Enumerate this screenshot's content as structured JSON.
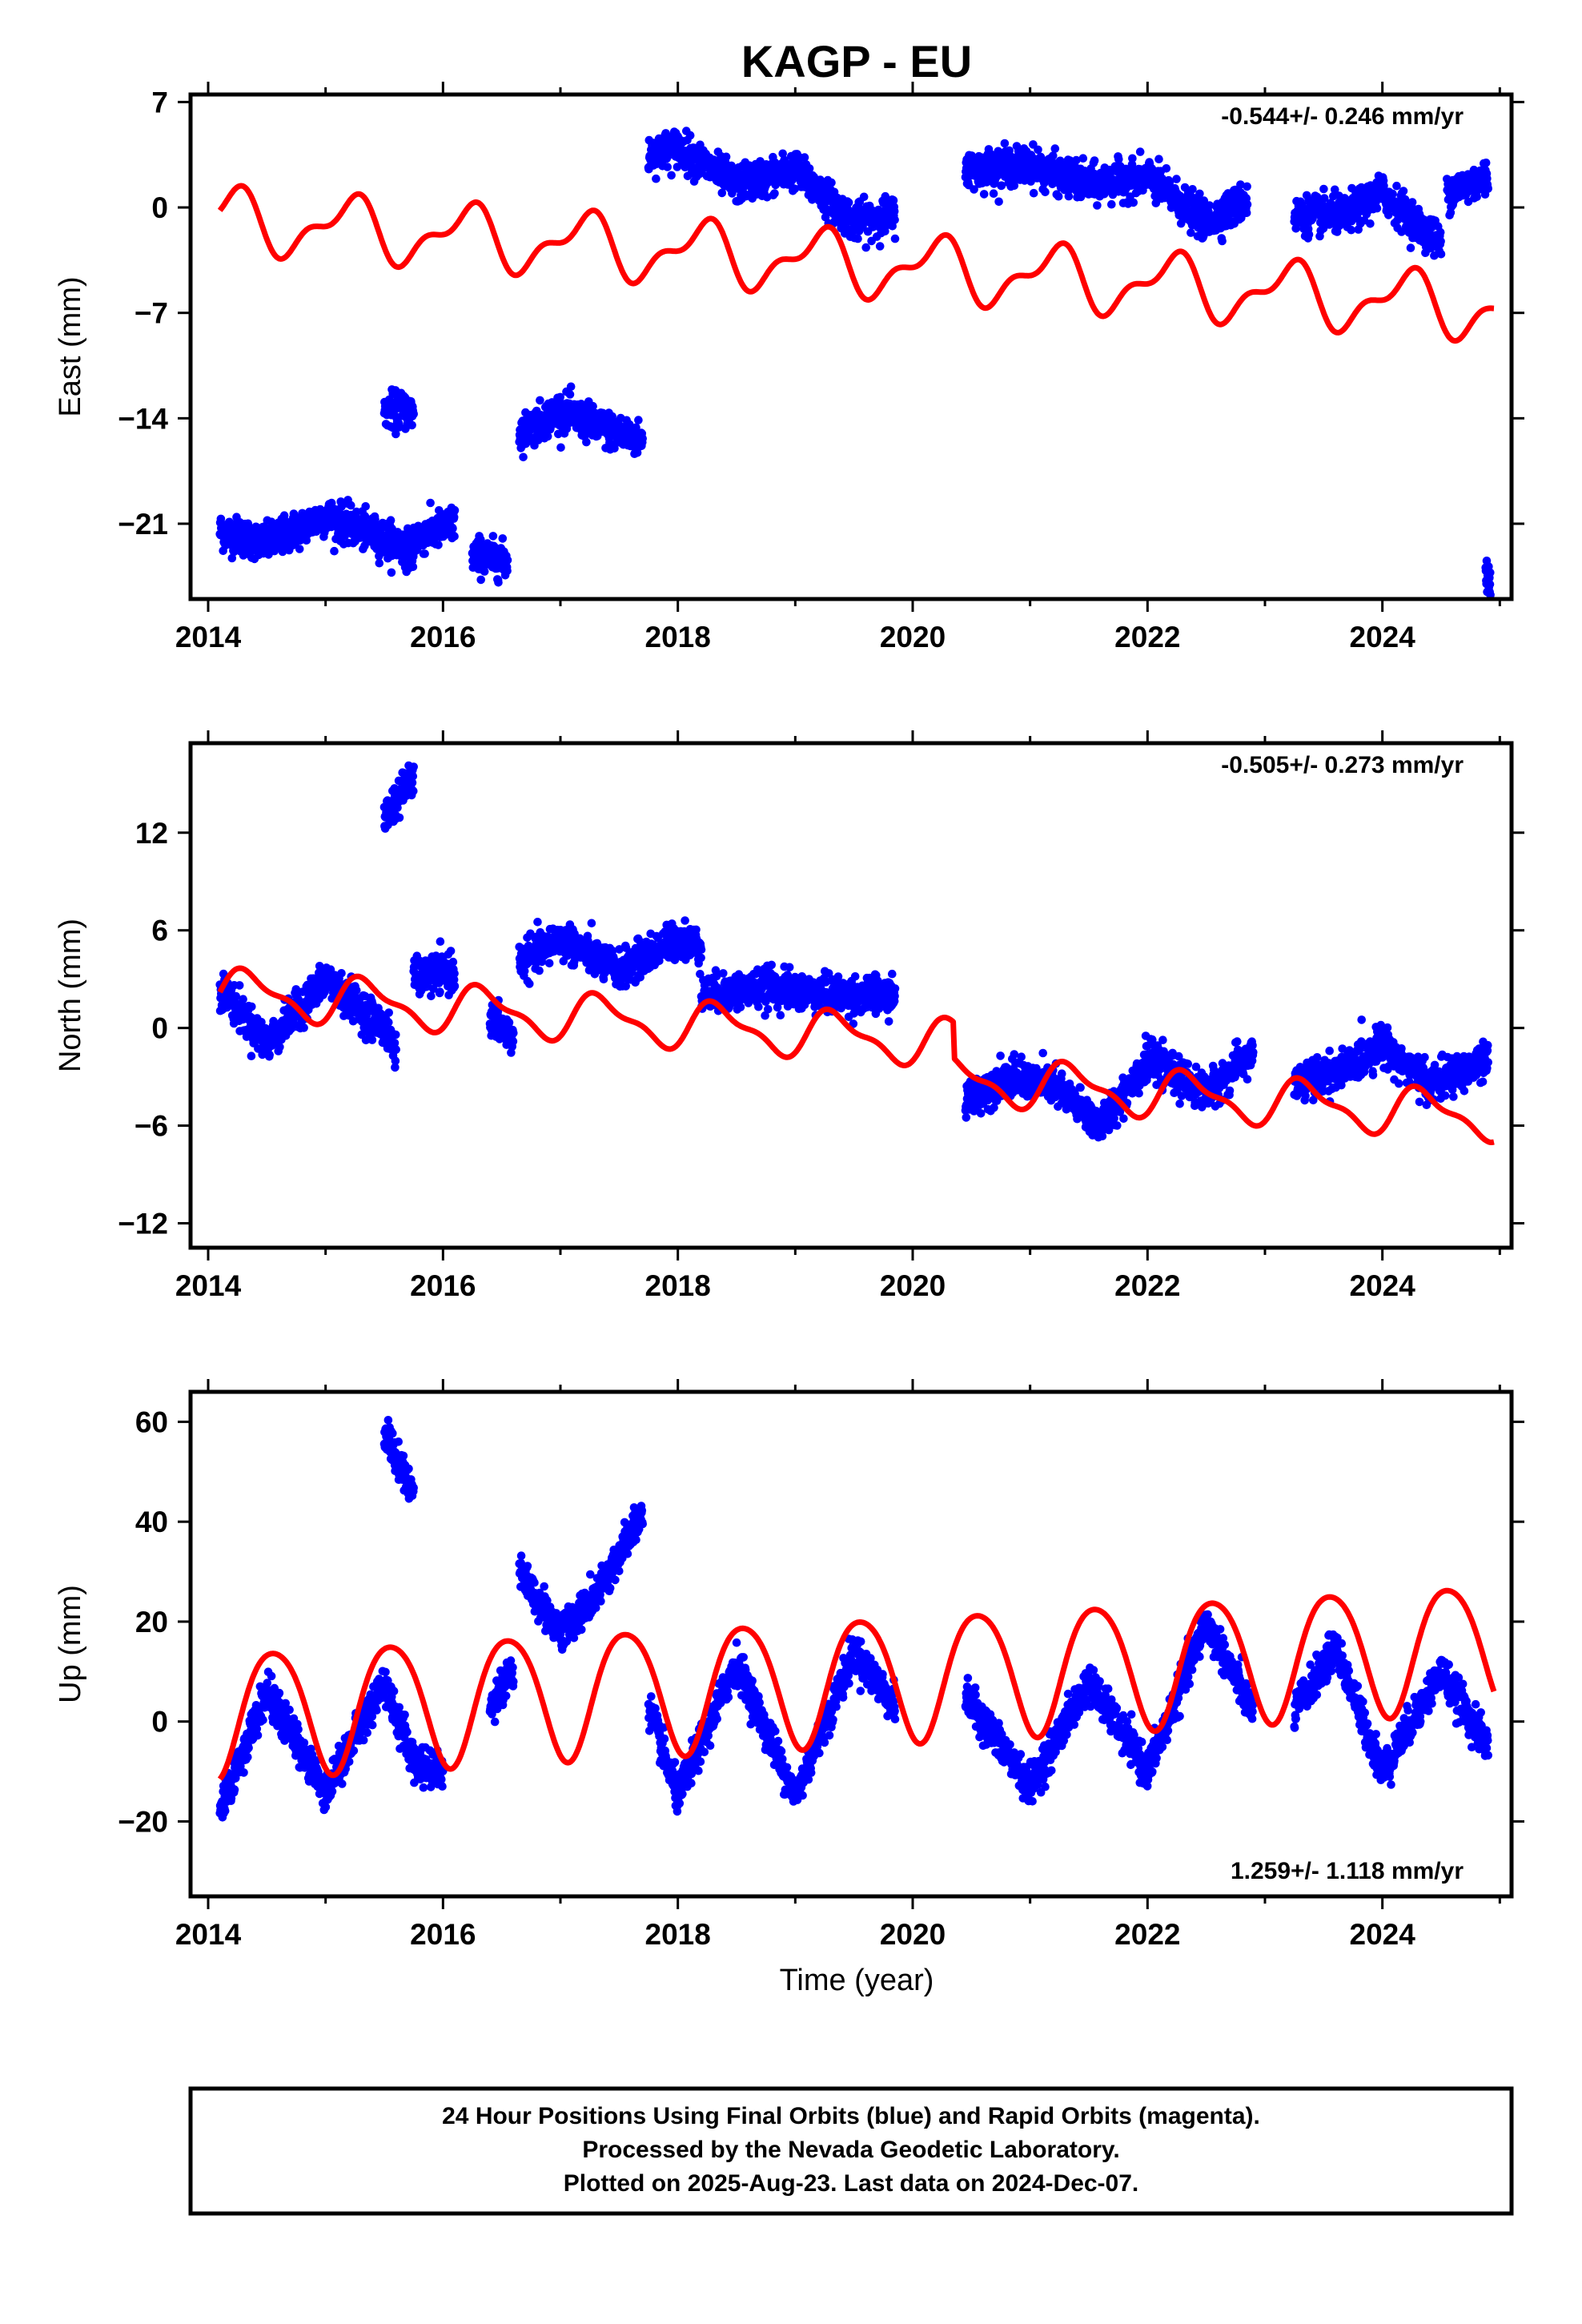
{
  "colors": {
    "observed": "#0000ff",
    "model": "#ff0000",
    "frame": "#000000"
  },
  "title": "KAGP - EU",
  "x_axis_title": "Time (year)",
  "footer": {
    "line1": "24 Hour Positions Using Final Orbits (blue) and Rapid Orbits (magenta).",
    "line2": "Processed by the Nevada Geodetic Laboratory.",
    "line3": "Plotted on 2025-Aug-23. Last data on 2024-Dec-07."
  },
  "chart_data": [
    {
      "type": "scatter",
      "component": "east",
      "ylabel": "East (mm)",
      "rate_label": "-0.544+/- 0.246 mm/yr",
      "xlim": [
        2013.85,
        2025.1
      ],
      "ylim": [
        -26,
        7.5
      ],
      "xticks": [
        2014,
        2016,
        2018,
        2020,
        2022,
        2024
      ],
      "yticks": [
        -21,
        -14,
        -7,
        0,
        7
      ],
      "observed_segments": [
        {
          "x": [
            2014.1,
            2014.5,
            2015.0,
            2015.5,
            2015.75
          ],
          "y": [
            -21.5,
            -22.3,
            -20.5,
            -22.0,
            -22.8
          ]
        },
        {
          "x": [
            2015.5,
            2015.75
          ],
          "y": [
            -13.5,
            -13.5
          ]
        },
        {
          "x": [
            2015.75,
            2016.1
          ],
          "y": [
            -22.0,
            -21.0
          ]
        },
        {
          "x": [
            2016.25,
            2016.55
          ],
          "y": [
            -23.0,
            -23.5
          ]
        },
        {
          "x": [
            2016.65,
            2017.0,
            2017.3,
            2017.7
          ],
          "y": [
            -15.0,
            -13.5,
            -14.5,
            -15.5
          ]
        },
        {
          "x": [
            2017.75,
            2018.0,
            2018.5,
            2019.0,
            2019.5,
            2019.85
          ],
          "y": [
            3.5,
            4.0,
            1.5,
            2.5,
            -1.0,
            -0.5
          ]
        },
        {
          "x": [
            2020.45,
            2021.0,
            2021.5,
            2022.0,
            2022.5,
            2022.85
          ],
          "y": [
            2.5,
            2.8,
            1.5,
            2.0,
            -1.0,
            0.5
          ]
        },
        {
          "x": [
            2023.25,
            2023.7,
            2024.0,
            2024.5
          ],
          "y": [
            -0.5,
            -0.5,
            1.0,
            -2.5
          ]
        },
        {
          "x": [
            2024.55,
            2024.9
          ],
          "y": [
            1.0,
            2.0
          ]
        },
        {
          "x": [
            2024.88,
            2024.92
          ],
          "y": [
            -24.0,
            -25.0
          ]
        }
      ],
      "model": {
        "offset": -0.8,
        "rate": -0.544,
        "annual_amp": 1.8,
        "annual_phase": 0.95,
        "semiannual_amp": 0.9,
        "semiannual_phase": 1.2,
        "step_epoch": 2017.7,
        "step": 0.0
      }
    },
    {
      "type": "scatter",
      "component": "north",
      "ylabel": "North (mm)",
      "rate_label": "-0.505+/- 0.273 mm/yr",
      "xlim": [
        2013.85,
        2025.1
      ],
      "ylim": [
        -13.5,
        17.5
      ],
      "xticks": [
        2014,
        2016,
        2018,
        2020,
        2022,
        2024
      ],
      "yticks": [
        -12,
        -6,
        0,
        6,
        12
      ],
      "observed_segments": [
        {
          "x": [
            2014.1,
            2014.5,
            2015.0,
            2015.5,
            2015.6
          ],
          "y": [
            2.5,
            -1.0,
            3.0,
            0.0,
            -1.5
          ]
        },
        {
          "x": [
            2015.5,
            2015.75
          ],
          "y": [
            13.0,
            15.5
          ]
        },
        {
          "x": [
            2015.75,
            2016.1
          ],
          "y": [
            3.0,
            3.5
          ]
        },
        {
          "x": [
            2016.4,
            2016.6
          ],
          "y": [
            0.5,
            -0.5
          ]
        },
        {
          "x": [
            2016.65,
            2017.0,
            2017.5,
            2018.0,
            2018.2
          ],
          "y": [
            4.0,
            5.5,
            3.5,
            5.5,
            5.0
          ]
        },
        {
          "x": [
            2018.2,
            2018.8,
            2019.3,
            2019.85
          ],
          "y": [
            2.0,
            2.5,
            2.0,
            2.0
          ]
        },
        {
          "x": [
            2020.45,
            2020.8,
            2021.2,
            2021.6,
            2022.0,
            2022.5,
            2022.9
          ],
          "y": [
            -4.5,
            -3.0,
            -3.5,
            -6.0,
            -2.0,
            -4.0,
            -1.5
          ]
        },
        {
          "x": [
            2023.25,
            2023.7,
            2024.0,
            2024.4,
            2024.9
          ],
          "y": [
            -3.5,
            -2.5,
            -1.0,
            -3.5,
            -2.0
          ]
        }
      ],
      "model": {
        "offset": 2.2,
        "rate": -0.505,
        "annual_amp": 1.3,
        "annual_phase": 0.1,
        "semiannual_amp": 0.5,
        "semiannual_phase": 0.6,
        "step_epoch": 2020.35,
        "step": -2.2
      }
    },
    {
      "type": "scatter",
      "component": "up",
      "ylabel": "Up (mm)",
      "rate_label": "1.259+/- 1.118 mm/yr",
      "xlim": [
        2013.85,
        2025.1
      ],
      "ylim": [
        -35,
        66
      ],
      "xticks": [
        2014,
        2016,
        2018,
        2020,
        2022,
        2024
      ],
      "yticks": [
        -20,
        0,
        20,
        40,
        60
      ],
      "observed_segments": [
        {
          "x": [
            2014.1,
            2014.5,
            2015.0,
            2015.5,
            2015.75,
            2016.0
          ],
          "y": [
            -18.0,
            6.0,
            -14.0,
            8.0,
            -8.0,
            -10.0
          ]
        },
        {
          "x": [
            2015.5,
            2015.75
          ],
          "y": [
            58.0,
            45.0
          ]
        },
        {
          "x": [
            2016.4,
            2016.6
          ],
          "y": [
            4.0,
            10.0
          ]
        },
        {
          "x": [
            2016.65,
            2017.0,
            2017.3,
            2017.7
          ],
          "y": [
            30.0,
            18.0,
            25.0,
            42.0
          ]
        },
        {
          "x": [
            2017.75,
            2018.0,
            2018.5,
            2019.0,
            2019.5,
            2019.85
          ],
          "y": [
            3.0,
            -15.0,
            12.0,
            -15.0,
            14.0,
            3.0
          ]
        },
        {
          "x": [
            2020.45,
            2021.0,
            2021.5,
            2022.0,
            2022.5,
            2022.9
          ],
          "y": [
            5.0,
            -13.0,
            8.0,
            -10.0,
            20.0,
            2.0
          ]
        },
        {
          "x": [
            2023.25,
            2023.6,
            2024.0,
            2024.5,
            2024.9
          ],
          "y": [
            2.0,
            15.0,
            -10.0,
            10.0,
            -5.0
          ]
        }
      ],
      "model": {
        "offset": 2.0,
        "rate": 1.259,
        "annual_amp": 12.5,
        "annual_phase": 0.31,
        "semiannual_amp": 1.5,
        "semiannual_phase": 0.2,
        "step_epoch": 2016.6,
        "step": 0.0
      }
    }
  ]
}
